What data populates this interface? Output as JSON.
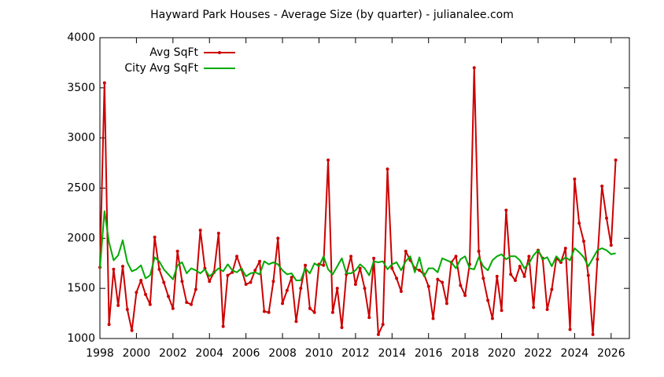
{
  "chart_data": {
    "type": "line",
    "title": "Hayward Park Houses - Average Size (by quarter) - julianalee.com",
    "x": [
      1998,
      1998.25,
      1998.5,
      1998.75,
      1999,
      1999.25,
      1999.5,
      1999.75,
      2000,
      2000.25,
      2000.5,
      2000.75,
      2001,
      2001.25,
      2001.5,
      2001.75,
      2002,
      2002.25,
      2002.5,
      2002.75,
      2003,
      2003.25,
      2003.5,
      2003.75,
      2004,
      2004.25,
      2004.5,
      2004.75,
      2005,
      2005.25,
      2005.5,
      2005.75,
      2006,
      2006.25,
      2006.5,
      2006.75,
      2007,
      2007.25,
      2007.5,
      2007.75,
      2008,
      2008.25,
      2008.5,
      2008.75,
      2009,
      2009.25,
      2009.5,
      2009.75,
      2010,
      2010.25,
      2010.5,
      2010.75,
      2011,
      2011.25,
      2011.5,
      2011.75,
      2012,
      2012.25,
      2012.5,
      2012.75,
      2013,
      2013.25,
      2013.5,
      2013.75,
      2014,
      2014.25,
      2014.5,
      2014.75,
      2015,
      2015.25,
      2015.5,
      2015.75,
      2016,
      2016.25,
      2016.5,
      2016.75,
      2017,
      2017.25,
      2017.5,
      2017.75,
      2018,
      2018.25,
      2018.5,
      2018.75,
      2019,
      2019.25,
      2019.5,
      2019.75,
      2020,
      2020.25,
      2020.5,
      2020.75,
      2021,
      2021.25,
      2021.5,
      2021.75,
      2022,
      2022.25,
      2022.5,
      2022.75,
      2023,
      2023.25,
      2023.5,
      2023.75,
      2024,
      2024.25,
      2024.5,
      2024.75,
      2025,
      2025.25,
      2025.5,
      2025.75,
      2026,
      2026.25
    ],
    "series": [
      {
        "name": "Avg SqFt",
        "color": "#cc0000",
        "markers": true,
        "values": [
          1710,
          3550,
          1140,
          1690,
          1330,
          1720,
          1290,
          1080,
          1460,
          1580,
          1440,
          1340,
          2010,
          1690,
          1560,
          1420,
          1300,
          1870,
          1570,
          1360,
          1340,
          1490,
          2080,
          1700,
          1570,
          1660,
          2050,
          1120,
          1630,
          1660,
          1820,
          1690,
          1540,
          1560,
          1680,
          1770,
          1270,
          1260,
          1570,
          2000,
          1350,
          1480,
          1610,
          1170,
          1500,
          1730,
          1300,
          1260,
          1740,
          1730,
          2780,
          1260,
          1500,
          1110,
          1640,
          1820,
          1540,
          1700,
          1500,
          1210,
          1800,
          1040,
          1140,
          2690,
          1700,
          1600,
          1470,
          1870,
          1780,
          1700,
          1680,
          1640,
          1520,
          1200,
          1590,
          1560,
          1350,
          1760,
          1820,
          1530,
          1430,
          1740,
          3700,
          1870,
          1600,
          1380,
          1200,
          1620,
          1280,
          2280,
          1640,
          1580,
          1720,
          1620,
          1820,
          1310,
          1880,
          1800,
          1290,
          1490,
          1800,
          1760,
          1900,
          1090,
          2590,
          2150,
          1970,
          1630,
          1040,
          1790,
          2520,
          2200,
          1930,
          2780
        ]
      },
      {
        "name": "City Avg SqFt",
        "color": "#00aa00",
        "markers": false,
        "values": [
          1700,
          2270,
          1960,
          1780,
          1830,
          1980,
          1760,
          1670,
          1690,
          1730,
          1600,
          1630,
          1810,
          1770,
          1690,
          1640,
          1590,
          1730,
          1760,
          1650,
          1700,
          1680,
          1650,
          1690,
          1620,
          1660,
          1700,
          1670,
          1740,
          1680,
          1660,
          1700,
          1620,
          1650,
          1660,
          1640,
          1770,
          1740,
          1760,
          1740,
          1680,
          1640,
          1650,
          1580,
          1580,
          1700,
          1650,
          1750,
          1720,
          1820,
          1690,
          1640,
          1720,
          1800,
          1650,
          1650,
          1680,
          1740,
          1700,
          1630,
          1770,
          1760,
          1770,
          1690,
          1740,
          1760,
          1680,
          1770,
          1820,
          1660,
          1810,
          1620,
          1700,
          1700,
          1660,
          1800,
          1780,
          1760,
          1700,
          1790,
          1820,
          1700,
          1690,
          1810,
          1720,
          1680,
          1780,
          1820,
          1840,
          1790,
          1820,
          1820,
          1780,
          1700,
          1750,
          1830,
          1880,
          1790,
          1810,
          1720,
          1820,
          1770,
          1810,
          1780,
          1900,
          1860,
          1810,
          1720,
          1800,
          1880,
          1900,
          1880,
          1840,
          1850
        ]
      }
    ],
    "xlim": [
      1998,
      2027
    ],
    "ylim": [
      1000,
      4000
    ],
    "xticks": [
      1998,
      2000,
      2002,
      2004,
      2006,
      2008,
      2010,
      2012,
      2014,
      2016,
      2018,
      2020,
      2022,
      2024,
      2026
    ],
    "yticks": [
      1000,
      1500,
      2000,
      2500,
      3000,
      3500,
      4000
    ],
    "grid": false,
    "legend": "top-left"
  }
}
